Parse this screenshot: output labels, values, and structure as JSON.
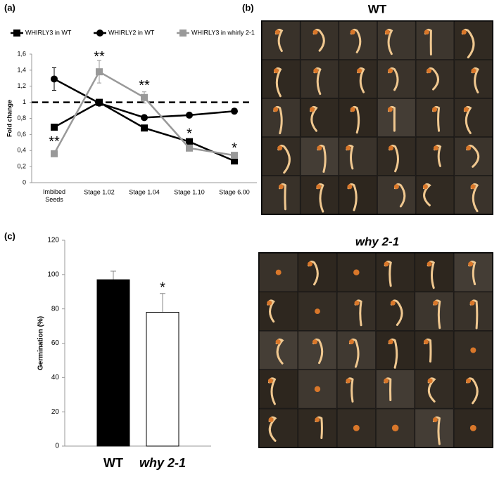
{
  "chart_data": [
    {
      "type": "line",
      "panel_label": "(a)",
      "y_label": "Fold change",
      "categories": [
        "Imbibed Seeds",
        "Stage 1.02",
        "Stage 1.04",
        "Stage 1.10",
        "Stage 6.00"
      ],
      "series": [
        {
          "name": "WHIRLY3 in WT",
          "color": "#000000",
          "marker": "square",
          "values": [
            0.69,
            1.0,
            0.68,
            0.51,
            0.27
          ],
          "errors": [
            0.03,
            0.02,
            0.03,
            0.03,
            0.02
          ]
        },
        {
          "name": "WHIRLY2 in WT",
          "color": "#000000",
          "marker": "circle",
          "values": [
            1.29,
            0.99,
            0.81,
            0.84,
            0.89
          ],
          "errors": [
            0.14,
            0.02,
            0.03,
            0.03,
            0.03
          ]
        },
        {
          "name": "WHIRLY3 in whirly 2-1",
          "color": "#999999",
          "marker": "square",
          "values": [
            0.36,
            1.38,
            1.06,
            0.43,
            0.34
          ],
          "errors": [
            0.03,
            0.14,
            0.07,
            0.03,
            0.03
          ]
        }
      ],
      "ylim": [
        0,
        1.6
      ],
      "yticks": [
        0,
        {
          "value": 0.2,
          "label": "0,2"
        },
        {
          "value": 0.4,
          "label": "0,4"
        },
        {
          "value": 0.6,
          "label": "0,6"
        },
        {
          "value": 0.8,
          "label": "0,8"
        },
        1,
        {
          "value": 1.2,
          "label": "1,2"
        },
        {
          "value": 1.4,
          "label": "1,4"
        },
        {
          "value": 1.6,
          "label": "1,6"
        }
      ],
      "reference_line": 1,
      "grid": false,
      "legend": "top",
      "annotations": [
        {
          "text": "**",
          "x": "Imbibed Seeds",
          "y": 0.5
        },
        {
          "text": "**",
          "x": "Stage 1.02",
          "y": 1.56
        },
        {
          "text": "**",
          "x": "Stage 1.04",
          "y": 1.2
        },
        {
          "text": "*",
          "x": "Stage 1.10",
          "y": 0.6
        },
        {
          "text": "*",
          "x": "Stage 6.00",
          "y": 0.42
        }
      ]
    },
    {
      "type": "bar",
      "panel_label": "(c)",
      "y_label": "Germination (%)",
      "categories": [
        "WT",
        "why 2-1"
      ],
      "values": [
        97,
        78
      ],
      "errors": [
        5,
        11
      ],
      "colors": [
        "#000000",
        "#ffffff"
      ],
      "ylim": [
        0,
        120
      ],
      "yticks": [
        0,
        20,
        40,
        60,
        80,
        100,
        120
      ],
      "grid": false,
      "annotations": [
        {
          "text": "*",
          "x": "why 2-1",
          "y": 92
        }
      ]
    }
  ],
  "photos": {
    "panel_label": "(b)",
    "panels": [
      {
        "title": "WT"
      },
      {
        "title": "why 2-1"
      }
    ]
  }
}
